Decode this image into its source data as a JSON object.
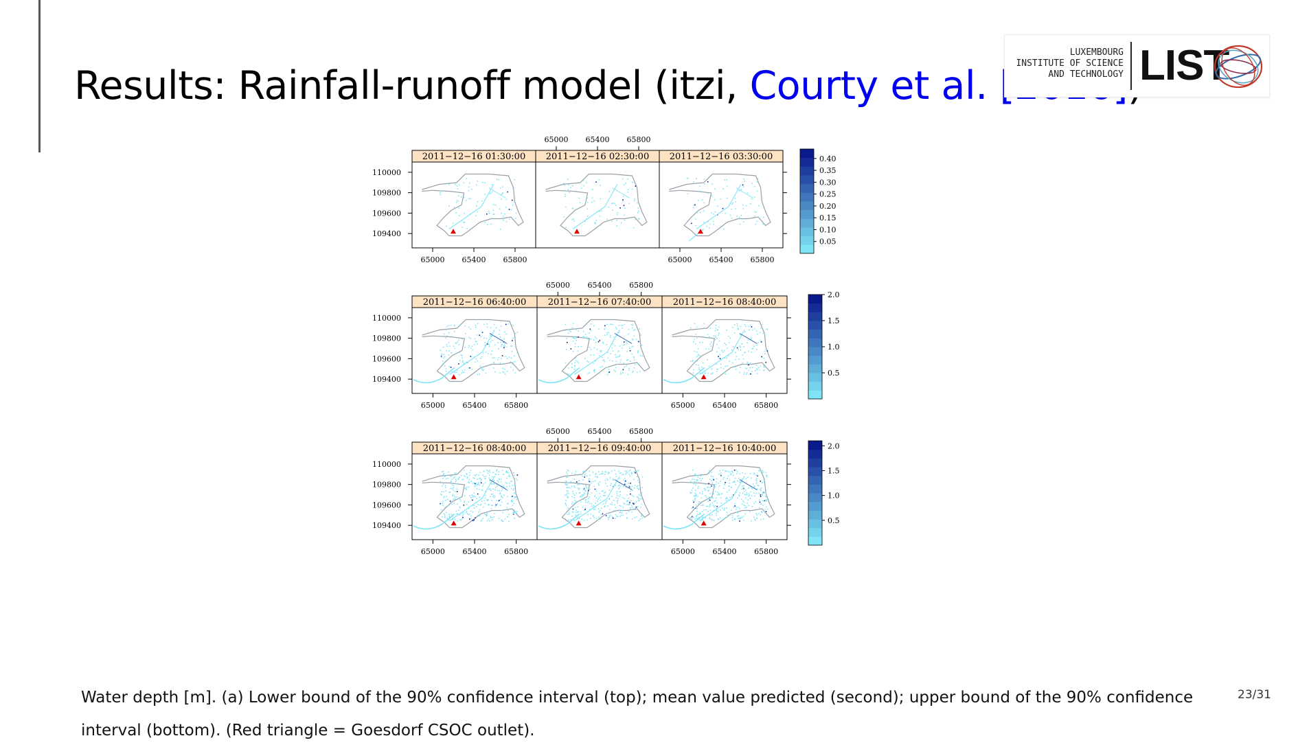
{
  "slide": {
    "title_prefix": "Results:  Rainfall-runoff model (itzi, ",
    "citation": "Courty et al. [2016]",
    "title_suffix": ")",
    "page_number": "23/31",
    "caption": "Water depth [m]. (a) Lower bound of the 90% confidence interval (top); mean value predicted (second); upper bound of the 90% confidence interval (bottom). (Red triangle = Goesdorf CSOC outlet)."
  },
  "logo": {
    "line1": "LUXEMBOURG",
    "line2": "INSTITUTE OF SCIENCE",
    "line3": "AND TECHNOLOGY",
    "wordmark": "LIST",
    "icon": "globe-icon"
  },
  "colors": {
    "strip_fill": "#fde3c4",
    "outline": "#9aa0a6",
    "water_light": "#7fe5f5",
    "water_dark": "#0a1a8c",
    "outlet": "#e00000",
    "cite": "#0000ee"
  },
  "chart_data": [
    {
      "type": "heatmap",
      "x_ticks": [
        "65000",
        "65400",
        "65800"
      ],
      "y_ticks": [
        "110000",
        "109800",
        "109600",
        "109400"
      ],
      "xlim": [
        64800,
        66000
      ],
      "ylim": [
        109260,
        110100
      ],
      "panels": [
        "2011−12−16 01:30:00",
        "2011−12−16 02:30:00",
        "2011−12−16 03:30:00"
      ],
      "colorbar": {
        "ticks": [
          "0.40",
          "0.35",
          "0.30",
          "0.25",
          "0.20",
          "0.15",
          "0.10",
          "0.05"
        ],
        "values": [
          0.4,
          0.35,
          0.3,
          0.25,
          0.2,
          0.15,
          0.1,
          0.05
        ],
        "min": 0.0,
        "max": 0.44
      },
      "outlet_marker": {
        "x": 65200,
        "y": 109420
      }
    },
    {
      "type": "heatmap",
      "x_ticks": [
        "65000",
        "65400",
        "65800"
      ],
      "y_ticks": [
        "110000",
        "109800",
        "109600",
        "109400"
      ],
      "xlim": [
        64800,
        66000
      ],
      "ylim": [
        109260,
        110100
      ],
      "panels": [
        "2011−12−16 06:40:00",
        "2011−12−16 07:40:00",
        "2011−12−16 08:40:00"
      ],
      "colorbar": {
        "ticks": [
          "2.0",
          "1.5",
          "1.0",
          "0.5"
        ],
        "values": [
          2.0,
          1.5,
          1.0,
          0.5
        ],
        "min": 0.0,
        "max": 2.0
      },
      "outlet_marker": {
        "x": 65200,
        "y": 109420
      }
    },
    {
      "type": "heatmap",
      "x_ticks": [
        "65000",
        "65400",
        "65800"
      ],
      "y_ticks": [
        "110000",
        "109800",
        "109600",
        "109400"
      ],
      "xlim": [
        64800,
        66000
      ],
      "ylim": [
        109260,
        110100
      ],
      "panels": [
        "2011−12−16 08:40:00",
        "2011−12−16 09:40:00",
        "2011−12−16 10:40:00"
      ],
      "colorbar": {
        "ticks": [
          "2.0",
          "1.5",
          "1.0",
          "0.5"
        ],
        "values": [
          2.0,
          1.5,
          1.0,
          0.5
        ],
        "min": 0.0,
        "max": 2.1
      },
      "outlet_marker": {
        "x": 65200,
        "y": 109420
      }
    }
  ]
}
